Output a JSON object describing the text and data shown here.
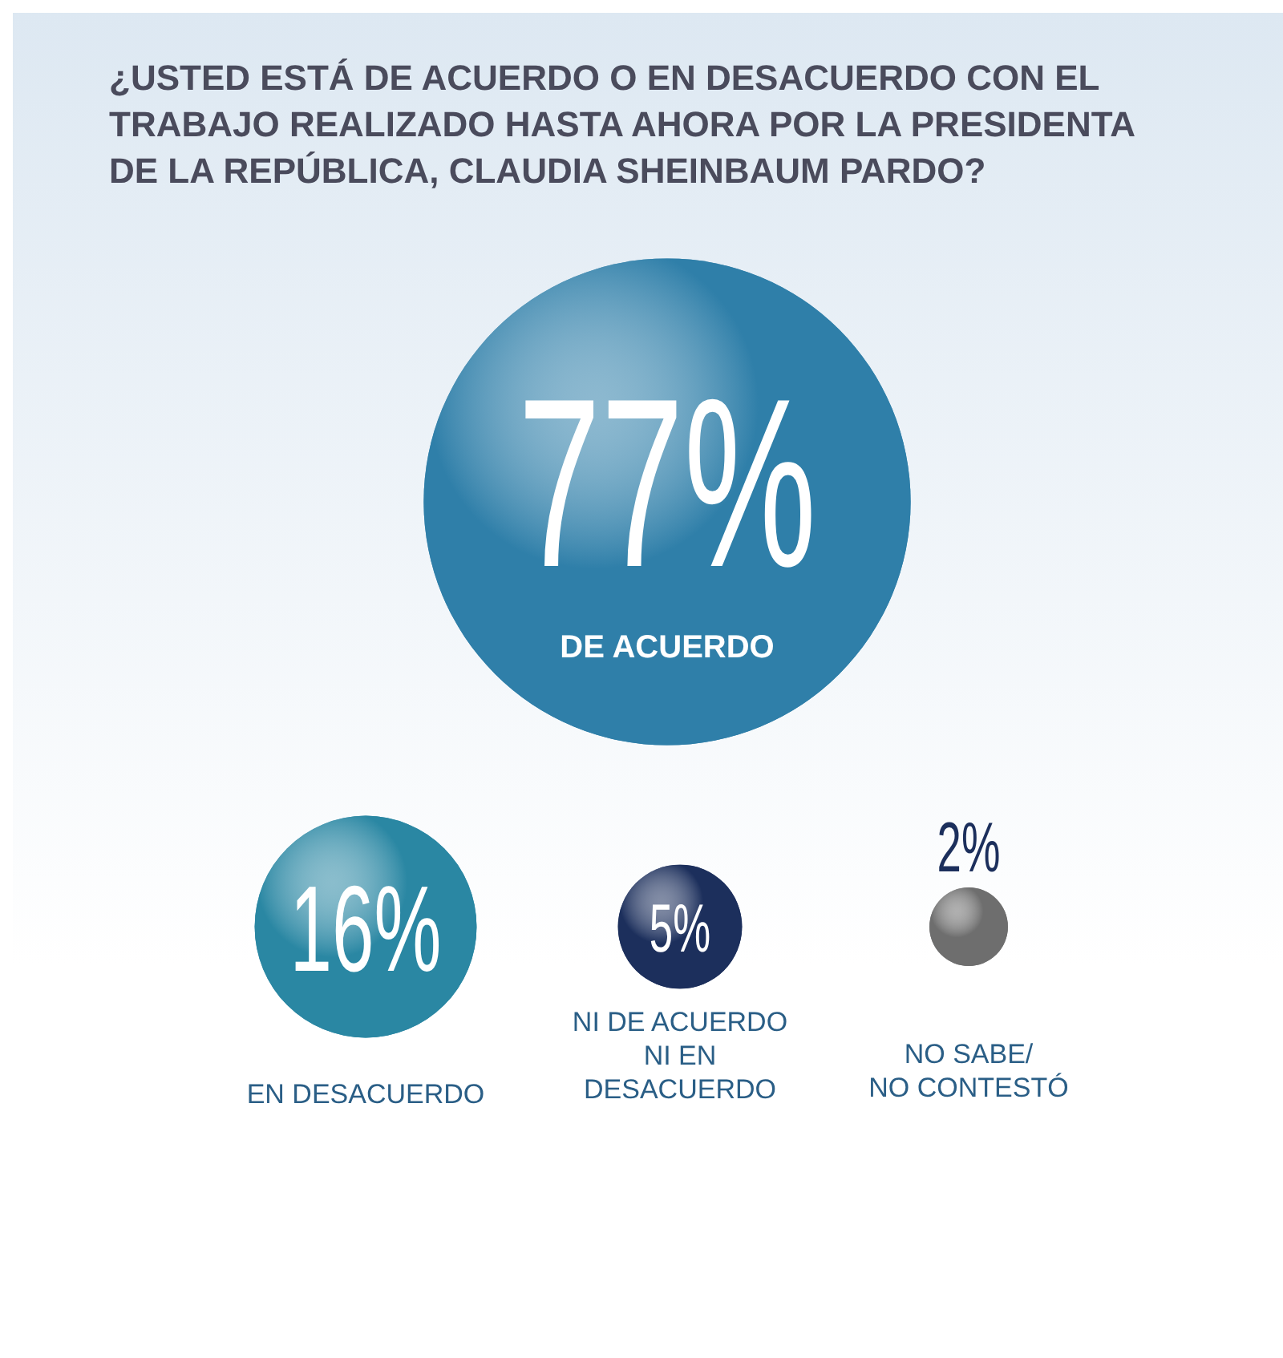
{
  "chart_data": {
    "type": "other",
    "title": "¿USTED ESTÁ DE ACUERDO O EN DESACUERDO CON EL TRABAJO REALIZADO HASTA AHORA POR LA PRESIDENTA DE LA REPÚBLICA, CLAUDIA SHEINBAUM PARDO?",
    "categories": [
      "DE ACUERDO",
      "EN DESACUERDO",
      "NI DE ACUERDO\nNI EN\nDESACUERDO",
      "NO SABE/\nNO CONTESTÓ"
    ],
    "values": [
      77,
      16,
      5,
      2
    ],
    "value_labels": [
      "77%",
      "16%",
      "5%",
      "2%"
    ],
    "colors": [
      "#2f7fa9",
      "#2a87a3",
      "#1c2f5c",
      "#6e6e6e"
    ]
  }
}
